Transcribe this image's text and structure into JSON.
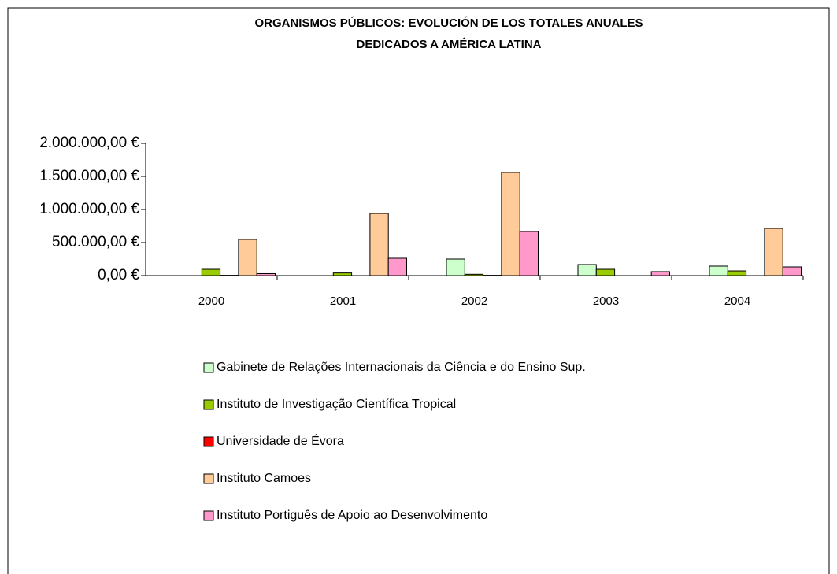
{
  "chart_data": {
    "type": "bar",
    "title": [
      "ORGANISMOS PÚBLICOS: EVOLUCIÓN DE LOS TOTALES ANUALES",
      "DEDICADOS A AMÉRICA LATINA"
    ],
    "categories": [
      "2000",
      "2001",
      "2002",
      "2003",
      "2004"
    ],
    "series": [
      {
        "name": "Gabinete de Relações Internacionais da Ciência e do Ensino Sup.",
        "color": "#ccffcc",
        "values": [
          0,
          0,
          250000,
          167000,
          143000
        ]
      },
      {
        "name": "Instituto de Investigação Científica Tropical",
        "color": "#99cc00",
        "values": [
          95000,
          40000,
          20000,
          95000,
          71000
        ]
      },
      {
        "name": "Universidade de Évora",
        "color": "#ff0000",
        "values": [
          5000,
          0,
          5000,
          0,
          0
        ]
      },
      {
        "name": "Instituto Camoes",
        "color": "#ffcc99",
        "values": [
          548000,
          940000,
          1560000,
          0,
          714000
        ]
      },
      {
        "name": "Instituto Portiguês de Apoio ao Desenvolvimento",
        "color": "#ff99cc",
        "values": [
          30000,
          262000,
          667000,
          60000,
          131000
        ]
      }
    ],
    "ylim": [
      0,
      2000000
    ],
    "yticks": [
      {
        "value": 0,
        "label": "0,00 €"
      },
      {
        "value": 500000,
        "label": "500.000,00 €"
      },
      {
        "value": 1000000,
        "label": "1.000.000,00 €"
      },
      {
        "value": 1500000,
        "label": "1.500.000,00 €"
      },
      {
        "value": 2000000,
        "label": "2.000.000,00 €"
      }
    ],
    "grid": false,
    "legend": "bottom"
  }
}
